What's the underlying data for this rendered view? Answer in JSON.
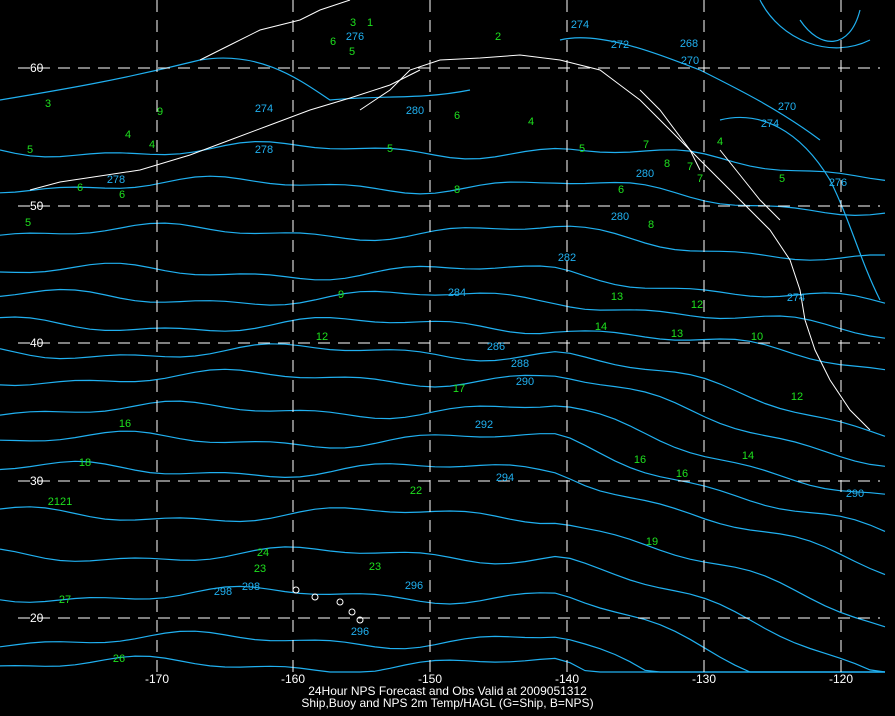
{
  "caption": {
    "line1": "24Hour NPS Forecast and Obs Valid at 2009051312",
    "line2": "Ship,Buoy and NPS 2m Temp/HAGL (G=Ship, B=NPS)"
  },
  "lon_ticks": [
    "-170",
    "-160",
    "-150",
    "-140",
    "-130",
    "-120"
  ],
  "lat_ticks": [
    "60",
    "50",
    "40",
    "30",
    "20"
  ],
  "colors": {
    "background": "#000000",
    "contour": "#20b0f0",
    "obs": "#1ee01e",
    "coast": "#ffffff",
    "grid": "#ffffff"
  },
  "obs_labels": [
    "3",
    "5",
    "5",
    "6",
    "6",
    "4",
    "4",
    "9",
    "12",
    "9",
    "16",
    "18",
    "2121",
    "22",
    "17",
    "13",
    "14",
    "13",
    "12",
    "16",
    "16",
    "14",
    "19",
    "23",
    "24",
    "23",
    "27",
    "26",
    "8",
    "8",
    "6",
    "5",
    "4",
    "6",
    "5",
    "8",
    "7",
    "10",
    "12",
    "3",
    "1",
    "6",
    "5",
    "2",
    "4",
    "5",
    "7",
    "7"
  ],
  "contour_labels": [
    "280",
    "278",
    "280",
    "282",
    "284",
    "286",
    "288",
    "290",
    "292",
    "294",
    "296",
    "298",
    "298",
    "296",
    "290",
    "274",
    "278",
    "270",
    "272",
    "274",
    "268",
    "270",
    "274",
    "276",
    "274",
    "280",
    "276"
  ]
}
